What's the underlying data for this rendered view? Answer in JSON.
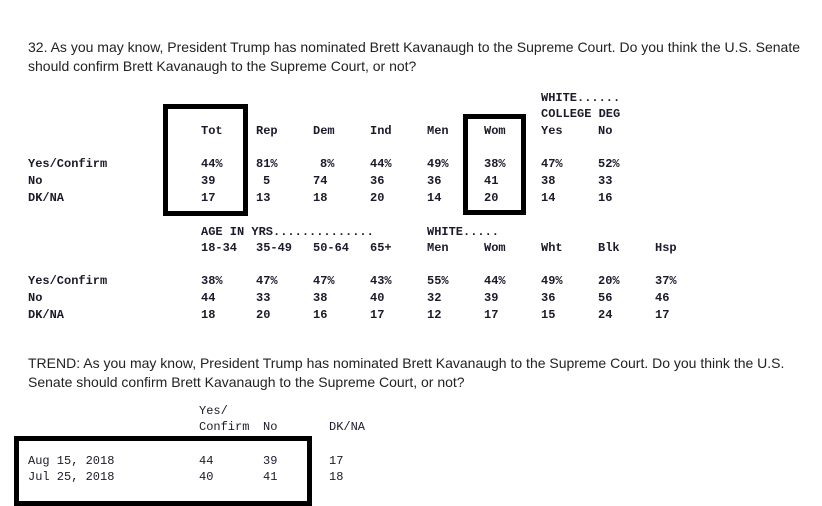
{
  "question": {
    "number": "32.",
    "text": "As you may know, President Trump has nominated Brett Kavanaugh to the Supreme Court. Do you think the U.S. Senate should confirm Brett Kavanaugh to the Supreme Court, or not?"
  },
  "table1": {
    "group_header": [
      "WHITE......",
      "COLLEGE DEG"
    ],
    "columns": [
      "Tot",
      "Rep",
      "Dem",
      "Ind",
      "Men",
      "Wom",
      "Yes",
      "No"
    ],
    "rows": [
      {
        "label": "Yes/Confirm",
        "values": [
          "44%",
          "81%",
          "8%",
          "44%",
          "49%",
          "38%",
          "47%",
          "52%"
        ]
      },
      {
        "label": "No",
        "values": [
          "39",
          "5",
          "74",
          "36",
          "36",
          "41",
          "38",
          "33"
        ]
      },
      {
        "label": "DK/NA",
        "values": [
          "17",
          "13",
          "18",
          "20",
          "14",
          "20",
          "14",
          "16"
        ]
      }
    ]
  },
  "table2": {
    "group_header_age": "AGE IN YRS..............",
    "group_header_white": "WHITE.....",
    "columns": [
      "18-34",
      "35-49",
      "50-64",
      "65+",
      "Men",
      "Wom",
      "Wht",
      "Blk",
      "Hsp"
    ],
    "rows": [
      {
        "label": "Yes/Confirm",
        "values": [
          "38%",
          "47%",
          "47%",
          "43%",
          "55%",
          "44%",
          "49%",
          "20%",
          "37%"
        ]
      },
      {
        "label": "No",
        "values": [
          "44",
          "33",
          "38",
          "40",
          "32",
          "39",
          "36",
          "56",
          "46"
        ]
      },
      {
        "label": "DK/NA",
        "values": [
          "18",
          "20",
          "16",
          "17",
          "12",
          "17",
          "15",
          "24",
          "17"
        ]
      }
    ]
  },
  "trend": {
    "label": "TREND:",
    "text": "As you may know, President Trump has nominated Brett Kavanaugh to the Supreme Court. Do you think the U.S. Senate should confirm Brett Kavanaugh to the Supreme Court, or not?",
    "header_line1": "Yes/",
    "header_confirm": "Confirm",
    "header_no": "No",
    "header_dkna": "DK/NA",
    "rows": [
      {
        "date": "Aug 15, 2018",
        "yes": "44",
        "no": "39",
        "dkna": "17"
      },
      {
        "date": "Jul 25, 2018",
        "yes": "40",
        "no": "41",
        "dkna": "18"
      }
    ]
  }
}
